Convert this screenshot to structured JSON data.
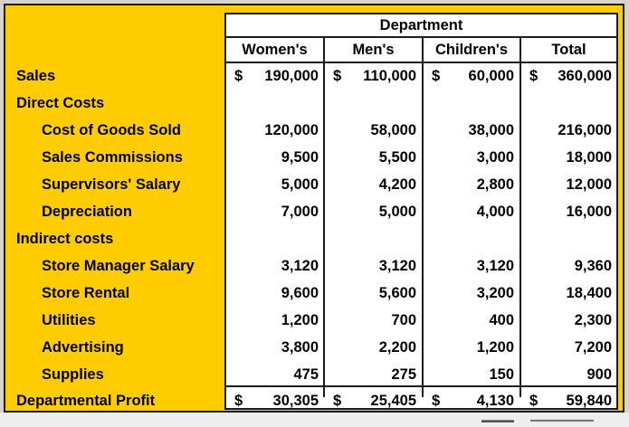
{
  "header": {
    "title": "Department",
    "columns": [
      "Women's",
      "Men's",
      "Children's",
      "Total"
    ]
  },
  "rows": [
    {
      "label": "Sales",
      "indent": false,
      "dollar": true,
      "values": [
        "190,000",
        "110,000",
        "60,000",
        "360,000"
      ]
    },
    {
      "label": "Direct Costs",
      "indent": false,
      "dollar": false,
      "values": [
        "",
        "",
        "",
        ""
      ]
    },
    {
      "label": "Cost of Goods Sold",
      "indent": true,
      "dollar": false,
      "values": [
        "120,000",
        "58,000",
        "38,000",
        "216,000"
      ]
    },
    {
      "label": "Sales Commissions",
      "indent": true,
      "dollar": false,
      "values": [
        "9,500",
        "5,500",
        "3,000",
        "18,000"
      ]
    },
    {
      "label": "Supervisors' Salary",
      "indent": true,
      "dollar": false,
      "values": [
        "5,000",
        "4,200",
        "2,800",
        "12,000"
      ]
    },
    {
      "label": "Depreciation",
      "indent": true,
      "dollar": false,
      "values": [
        "7,000",
        "5,000",
        "4,000",
        "16,000"
      ]
    },
    {
      "label": "Indirect costs",
      "indent": false,
      "dollar": false,
      "values": [
        "",
        "",
        "",
        ""
      ]
    },
    {
      "label": "Store Manager Salary",
      "indent": true,
      "dollar": false,
      "values": [
        "3,120",
        "3,120",
        "3,120",
        "9,360"
      ]
    },
    {
      "label": "Store Rental",
      "indent": true,
      "dollar": false,
      "values": [
        "9,600",
        "5,600",
        "3,200",
        "18,400"
      ]
    },
    {
      "label": "Utilities",
      "indent": true,
      "dollar": false,
      "values": [
        "1,200",
        "700",
        "400",
        "2,300"
      ]
    },
    {
      "label": "Advertising",
      "indent": true,
      "dollar": false,
      "values": [
        "3,800",
        "2,200",
        "1,200",
        "7,200"
      ]
    },
    {
      "label": "Supplies",
      "indent": true,
      "dollar": false,
      "values": [
        "475",
        "275",
        "150",
        "900"
      ]
    },
    {
      "label": "Departmental Profit",
      "indent": false,
      "dollar": true,
      "values": [
        "30,305",
        "25,405",
        "4,130",
        "59,840"
      ]
    }
  ],
  "currency_symbol": "$",
  "colors": {
    "background": "#ffcc00",
    "table": "#ffffff",
    "border": "#1c1c1c"
  }
}
